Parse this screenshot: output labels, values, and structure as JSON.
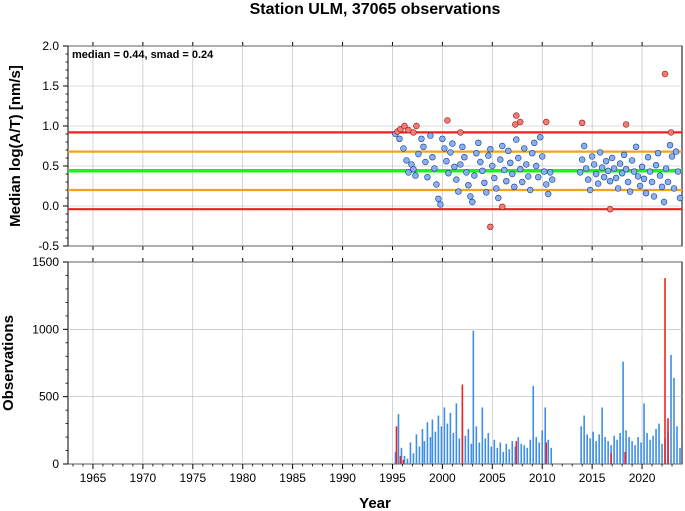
{
  "chart_data": [
    {
      "type": "scatter",
      "title": "Station ULM, 37065 observations",
      "ylabel": "Median log(A/T) [nm/s]",
      "annotation": "median = 0.44, smad = 0.24",
      "xlim": [
        1962.5,
        2024.0
      ],
      "ylim": [
        -0.5,
        2.0
      ],
      "yticks": [
        "-0.5",
        "0.0",
        "0.5",
        "1.0",
        "1.5",
        "2.0"
      ],
      "ytick_values": [
        -0.5,
        0.0,
        0.5,
        1.0,
        1.5,
        2.0
      ],
      "grid": true,
      "colors": {
        "inlier": "#87b0f2",
        "outlier": "#f47a74",
        "median_line": "#22ee22",
        "smad_line": "#f2a21e",
        "limit_line": "#ee2222"
      },
      "reference_lines": [
        {
          "name": "median",
          "y": 0.44,
          "color": "#22ee22"
        },
        {
          "name": "median + smad",
          "y": 0.68,
          "color": "#f2a21e"
        },
        {
          "name": "median - smad",
          "y": 0.2,
          "color": "#f2a21e"
        },
        {
          "name": "median + 2 smad",
          "y": 0.92,
          "color": "#ee2222"
        },
        {
          "name": "median - 2 smad",
          "y": -0.04,
          "color": "#ee2222"
        }
      ],
      "outliers": [
        [
          1995.5,
          0.93
        ],
        [
          1995.8,
          0.96
        ],
        [
          1996.2,
          1.0
        ],
        [
          1996.6,
          0.95
        ],
        [
          1997.1,
          0.92
        ],
        [
          1997.4,
          1.0
        ],
        [
          2000.5,
          1.07
        ],
        [
          2001.8,
          0.92
        ],
        [
          2004.8,
          -0.26
        ],
        [
          2006.0,
          -0.01
        ],
        [
          2007.3,
          1.02
        ],
        [
          2007.4,
          1.13
        ],
        [
          2007.8,
          1.05
        ],
        [
          2010.4,
          1.05
        ],
        [
          2014.0,
          1.04
        ],
        [
          2016.8,
          -0.04
        ],
        [
          2018.4,
          1.02
        ],
        [
          2022.3,
          1.65
        ],
        [
          2022.9,
          0.92
        ]
      ],
      "points": [
        [
          1995.3,
          0.9
        ],
        [
          1995.7,
          0.84
        ],
        [
          1996.1,
          0.72
        ],
        [
          1996.4,
          0.57
        ],
        [
          1996.6,
          0.42
        ],
        [
          1996.9,
          0.52
        ],
        [
          1997.1,
          0.46
        ],
        [
          1997.3,
          0.38
        ],
        [
          1997.6,
          0.65
        ],
        [
          1997.9,
          0.84
        ],
        [
          1998.1,
          0.74
        ],
        [
          1998.3,
          0.55
        ],
        [
          1998.5,
          0.36
        ],
        [
          1998.8,
          0.88
        ],
        [
          1999.0,
          0.61
        ],
        [
          1999.2,
          0.47
        ],
        [
          1999.4,
          0.27
        ],
        [
          1999.6,
          0.09
        ],
        [
          1999.8,
          0.02
        ],
        [
          2000.0,
          0.84
        ],
        [
          2000.2,
          0.72
        ],
        [
          2000.4,
          0.56
        ],
        [
          2000.6,
          0.41
        ],
        [
          2000.8,
          0.67
        ],
        [
          2001.0,
          0.78
        ],
        [
          2001.2,
          0.49
        ],
        [
          2001.4,
          0.33
        ],
        [
          2001.6,
          0.18
        ],
        [
          2001.8,
          0.52
        ],
        [
          2002.0,
          0.74
        ],
        [
          2002.2,
          0.61
        ],
        [
          2002.4,
          0.42
        ],
        [
          2002.6,
          0.26
        ],
        [
          2002.8,
          0.12
        ],
        [
          2003.0,
          0.05
        ],
        [
          2003.2,
          0.38
        ],
        [
          2003.4,
          0.66
        ],
        [
          2003.6,
          0.79
        ],
        [
          2003.8,
          0.55
        ],
        [
          2004.0,
          0.44
        ],
        [
          2004.2,
          0.29
        ],
        [
          2004.4,
          0.17
        ],
        [
          2004.6,
          0.63
        ],
        [
          2004.8,
          0.71
        ],
        [
          2005.0,
          0.5
        ],
        [
          2005.2,
          0.35
        ],
        [
          2005.4,
          0.22
        ],
        [
          2005.6,
          0.1
        ],
        [
          2005.8,
          0.58
        ],
        [
          2006.0,
          0.75
        ],
        [
          2006.2,
          0.45
        ],
        [
          2006.4,
          0.31
        ],
        [
          2006.6,
          0.69
        ],
        [
          2006.8,
          0.54
        ],
        [
          2007.0,
          0.4
        ],
        [
          2007.2,
          0.24
        ],
        [
          2007.4,
          0.83
        ],
        [
          2007.6,
          0.6
        ],
        [
          2007.8,
          0.46
        ],
        [
          2008.0,
          0.3
        ],
        [
          2008.2,
          0.72
        ],
        [
          2008.4,
          0.52
        ],
        [
          2008.6,
          0.37
        ],
        [
          2008.8,
          0.2
        ],
        [
          2009.0,
          0.66
        ],
        [
          2009.2,
          0.79
        ],
        [
          2009.4,
          0.5
        ],
        [
          2009.6,
          0.36
        ],
        [
          2009.8,
          0.86
        ],
        [
          2010.0,
          0.62
        ],
        [
          2010.2,
          0.43
        ],
        [
          2010.4,
          0.27
        ],
        [
          2010.6,
          0.15
        ],
        [
          2010.8,
          0.42
        ],
        [
          2011.0,
          0.33
        ],
        [
          2013.8,
          0.42
        ],
        [
          2014.0,
          0.58
        ],
        [
          2014.2,
          0.75
        ],
        [
          2014.4,
          0.47
        ],
        [
          2014.6,
          0.33
        ],
        [
          2014.8,
          0.2
        ],
        [
          2015.0,
          0.62
        ],
        [
          2015.2,
          0.52
        ],
        [
          2015.4,
          0.4
        ],
        [
          2015.6,
          0.28
        ],
        [
          2015.8,
          0.67
        ],
        [
          2016.0,
          0.48
        ],
        [
          2016.2,
          0.36
        ],
        [
          2016.4,
          0.56
        ],
        [
          2016.6,
          0.44
        ],
        [
          2016.8,
          0.31
        ],
        [
          2017.0,
          0.6
        ],
        [
          2017.2,
          0.47
        ],
        [
          2017.4,
          0.35
        ],
        [
          2017.6,
          0.22
        ],
        [
          2017.8,
          0.53
        ],
        [
          2018.0,
          0.41
        ],
        [
          2018.2,
          0.64
        ],
        [
          2018.4,
          0.46
        ],
        [
          2018.6,
          0.3
        ],
        [
          2018.8,
          0.18
        ],
        [
          2019.0,
          0.57
        ],
        [
          2019.2,
          0.43
        ],
        [
          2019.4,
          0.74
        ],
        [
          2019.6,
          0.37
        ],
        [
          2019.8,
          0.25
        ],
        [
          2020.0,
          0.49
        ],
        [
          2020.2,
          0.34
        ],
        [
          2020.4,
          0.16
        ],
        [
          2020.6,
          0.61
        ],
        [
          2020.8,
          0.43
        ],
        [
          2021.0,
          0.3
        ],
        [
          2021.2,
          0.12
        ],
        [
          2021.4,
          0.51
        ],
        [
          2021.6,
          0.66
        ],
        [
          2021.8,
          0.38
        ],
        [
          2022.0,
          0.24
        ],
        [
          2022.2,
          0.05
        ],
        [
          2022.4,
          0.47
        ],
        [
          2022.6,
          0.3
        ],
        [
          2022.8,
          0.76
        ],
        [
          2023.0,
          0.62
        ],
        [
          2023.2,
          0.22
        ],
        [
          2023.4,
          0.68
        ],
        [
          2023.6,
          0.43
        ],
        [
          2023.8,
          0.1
        ]
      ]
    },
    {
      "type": "bar",
      "ylabel": "Observations",
      "xlabel": "Year",
      "xlim": [
        1962.5,
        2024.0
      ],
      "ylim": [
        0,
        1500
      ],
      "yticks": [
        "0",
        "500",
        "1000",
        "1500"
      ],
      "ytick_values": [
        0,
        500,
        1000,
        1500
      ],
      "xticks": [
        "1965",
        "1970",
        "1975",
        "1980",
        "1985",
        "1990",
        "1995",
        "2000",
        "2005",
        "2010",
        "2015",
        "2020"
      ],
      "xtick_values": [
        1965,
        1970,
        1975,
        1980,
        1985,
        1990,
        1995,
        2000,
        2005,
        2010,
        2015,
        2020
      ],
      "grid": true,
      "colors": {
        "bar": "#3d8ee8",
        "outlier_bar": "#ee2222"
      },
      "series": [
        {
          "values": [
            [
              1995.3,
              90
            ],
            [
              1995.6,
              370
            ],
            [
              1995.9,
              120
            ],
            [
              1996.2,
              60
            ],
            [
              1996.5,
              40
            ],
            [
              1996.8,
              160
            ],
            [
              1997.1,
              80
            ],
            [
              1997.4,
              220
            ],
            [
              1997.7,
              130
            ],
            [
              1998.0,
              260
            ],
            [
              1998.2,
              170
            ],
            [
              1998.5,
              310
            ],
            [
              1998.8,
              200
            ],
            [
              1999.0,
              330
            ],
            [
              1999.3,
              240
            ],
            [
              1999.6,
              360
            ],
            [
              1999.9,
              280
            ],
            [
              2000.2,
              420
            ],
            [
              2000.5,
              300
            ],
            [
              2000.8,
              380
            ],
            [
              2001.1,
              230
            ],
            [
              2001.4,
              450
            ],
            [
              2001.7,
              190
            ],
            [
              2002.0,
              350
            ],
            [
              2002.3,
              210
            ],
            [
              2002.6,
              260
            ],
            [
              2002.9,
              150
            ],
            [
              2003.1,
              990
            ],
            [
              2003.4,
              280
            ],
            [
              2003.7,
              160
            ],
            [
              2004.0,
              420
            ],
            [
              2004.3,
              190
            ],
            [
              2004.6,
              230
            ],
            [
              2004.9,
              130
            ],
            [
              2005.2,
              180
            ],
            [
              2005.5,
              120
            ],
            [
              2005.8,
              160
            ],
            [
              2006.1,
              90
            ],
            [
              2006.4,
              150
            ],
            [
              2006.7,
              110
            ],
            [
              2007.0,
              170
            ],
            [
              2007.3,
              130
            ],
            [
              2007.6,
              200
            ],
            [
              2007.9,
              150
            ],
            [
              2008.2,
              140
            ],
            [
              2008.5,
              120
            ],
            [
              2008.8,
              180
            ],
            [
              2009.1,
              580
            ],
            [
              2009.4,
              200
            ],
            [
              2009.7,
              160
            ],
            [
              2010.0,
              250
            ],
            [
              2010.3,
              420
            ],
            [
              2010.6,
              180
            ],
            [
              2010.9,
              120
            ],
            [
              2013.9,
              280
            ],
            [
              2014.2,
              360
            ],
            [
              2014.5,
              220
            ],
            [
              2014.8,
              190
            ],
            [
              2015.1,
              240
            ],
            [
              2015.4,
              170
            ],
            [
              2015.7,
              220
            ],
            [
              2016.0,
              420
            ],
            [
              2016.3,
              200
            ],
            [
              2016.6,
              170
            ],
            [
              2016.9,
              140
            ],
            [
              2017.2,
              210
            ],
            [
              2017.5,
              180
            ],
            [
              2017.8,
              230
            ],
            [
              2018.1,
              760
            ],
            [
              2018.4,
              250
            ],
            [
              2018.7,
              200
            ],
            [
              2019.0,
              170
            ],
            [
              2019.3,
              140
            ],
            [
              2019.6,
              200
            ],
            [
              2019.9,
              160
            ],
            [
              2020.2,
              450
            ],
            [
              2020.5,
              230
            ],
            [
              2020.8,
              180
            ],
            [
              2021.1,
              210
            ],
            [
              2021.4,
              260
            ],
            [
              2021.7,
              300
            ],
            [
              2022.0,
              150
            ],
            [
              2022.3,
              190
            ],
            [
              2022.6,
              240
            ],
            [
              2022.9,
              810
            ],
            [
              2023.2,
              640
            ],
            [
              2023.5,
              280
            ],
            [
              2023.8,
              120
            ]
          ]
        },
        {
          "values": [
            [
              1995.4,
              280
            ],
            [
              1995.8,
              60
            ],
            [
              1996.1,
              30
            ],
            [
              2002.0,
              590
            ],
            [
              2007.4,
              170
            ],
            [
              2010.4,
              160
            ],
            [
              2016.9,
              80
            ],
            [
              2018.3,
              90
            ],
            [
              2022.3,
              1380
            ],
            [
              2022.6,
              340
            ]
          ]
        }
      ]
    }
  ]
}
